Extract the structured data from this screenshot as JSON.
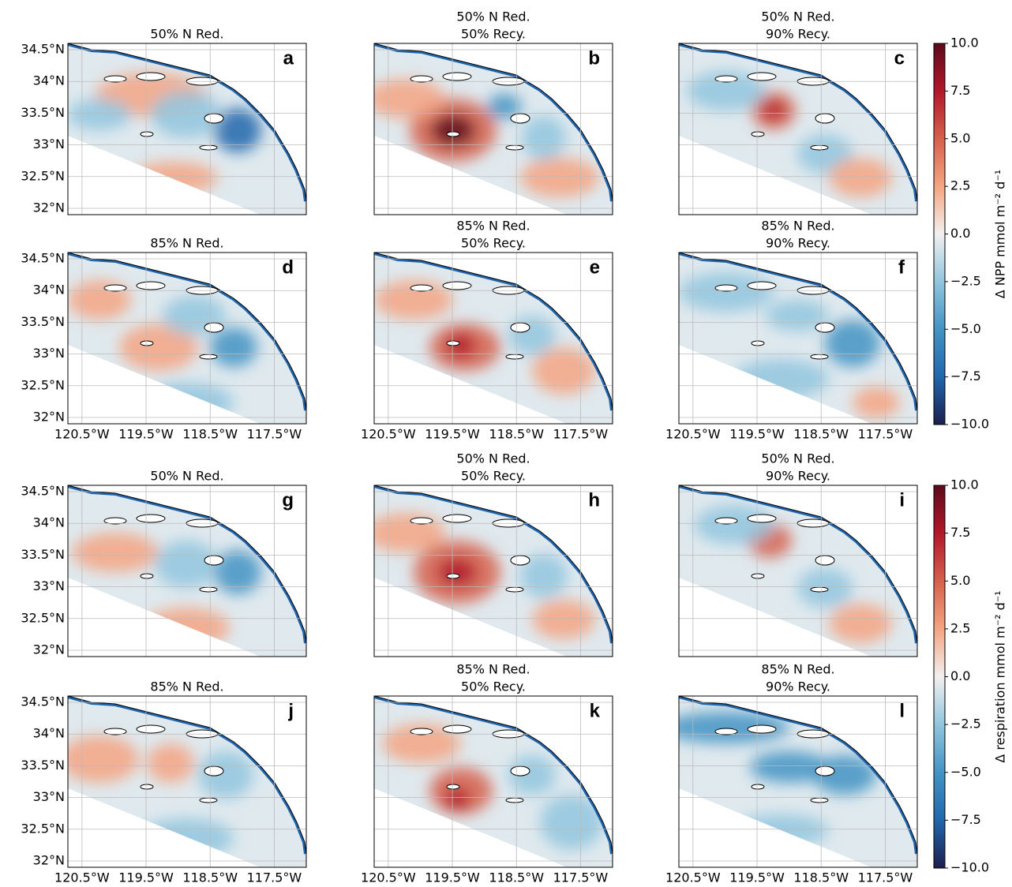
{
  "chart_data": {
    "type": "map",
    "xlim": [
      -120.72,
      -117.0
    ],
    "ylim": [
      31.9,
      34.6
    ],
    "xticks": [
      {
        "value": -120.5,
        "label": "120.5°W"
      },
      {
        "value": -119.5,
        "label": "119.5°W"
      },
      {
        "value": -118.5,
        "label": "118.5°W"
      },
      {
        "value": -117.5,
        "label": "117.5°W"
      }
    ],
    "yticks": [
      {
        "value": 32,
        "label": "32°N"
      },
      {
        "value": 32.5,
        "label": "32.5°N"
      },
      {
        "value": 33,
        "label": "33°N"
      },
      {
        "value": 33.5,
        "label": "33.5°N"
      },
      {
        "value": 34,
        "label": "34°N"
      },
      {
        "value": 34.5,
        "label": "34.5°N"
      }
    ],
    "grid": true,
    "panels": [
      {
        "title": [
          "50% N Red."
        ],
        "letter": "a"
      },
      {
        "title": [
          "50% N Red.",
          "50% Recy."
        ],
        "letter": "b"
      },
      {
        "title": [
          "50% N Red.",
          "90% Recy."
        ],
        "letter": "c"
      },
      {
        "title": [
          "85% N Red."
        ],
        "letter": "d"
      },
      {
        "title": [
          "85% N Red.",
          "50% Recy."
        ],
        "letter": "e"
      },
      {
        "title": [
          "85% N Red.",
          "90% Recy."
        ],
        "letter": "f"
      },
      {
        "title": [
          "50% N Red."
        ],
        "letter": "g"
      },
      {
        "title": [
          "50% N Red.",
          "50% Recy."
        ],
        "letter": "h"
      },
      {
        "title": [
          "50% N Red.",
          "90% Recy."
        ],
        "letter": "i"
      },
      {
        "title": [
          "85% N Red."
        ],
        "letter": "j"
      },
      {
        "title": [
          "85% N Red.",
          "50% Recy."
        ],
        "letter": "k"
      },
      {
        "title": [
          "85% N Red.",
          "90% Recy."
        ],
        "letter": "l"
      }
    ],
    "colormap": [
      "#1b1f4d",
      "#2166ac",
      "#4393c3",
      "#92c5de",
      "#f2f0ef",
      "#f4a582",
      "#d6604d",
      "#b2182b",
      "#5c0a1b"
    ],
    "colorbars": [
      {
        "label": "Δ NPP mmol m⁻² d⁻¹",
        "lim": [
          -10,
          10
        ],
        "ticks": [
          {
            "value": 10,
            "label": "10.0"
          },
          7.5,
          {
            "value": 5,
            "label": "5.0"
          },
          2.5,
          {
            "value": 0,
            "label": "0.0"
          },
          {
            "value": -2.5,
            "label": "−2.5"
          },
          {
            "value": -5,
            "label": "−5.0"
          },
          {
            "value": -7.5,
            "label": "−7.5"
          },
          {
            "value": -10,
            "label": "−10.0"
          }
        ]
      },
      {
        "label": "Δ respiration mmol m⁻² d⁻¹",
        "lim": [
          -10,
          10
        ],
        "ticks": [
          {
            "value": 10,
            "label": "10.0"
          },
          7.5,
          {
            "value": 5,
            "label": "5.0"
          },
          2.5,
          {
            "value": 0,
            "label": "0.0"
          },
          {
            "value": -2.5,
            "label": "−2.5"
          },
          {
            "value": -5,
            "label": "−5.0"
          },
          {
            "value": -7.5,
            "label": "−7.5"
          },
          {
            "value": -10,
            "label": "−10.0"
          }
        ]
      }
    ]
  }
}
